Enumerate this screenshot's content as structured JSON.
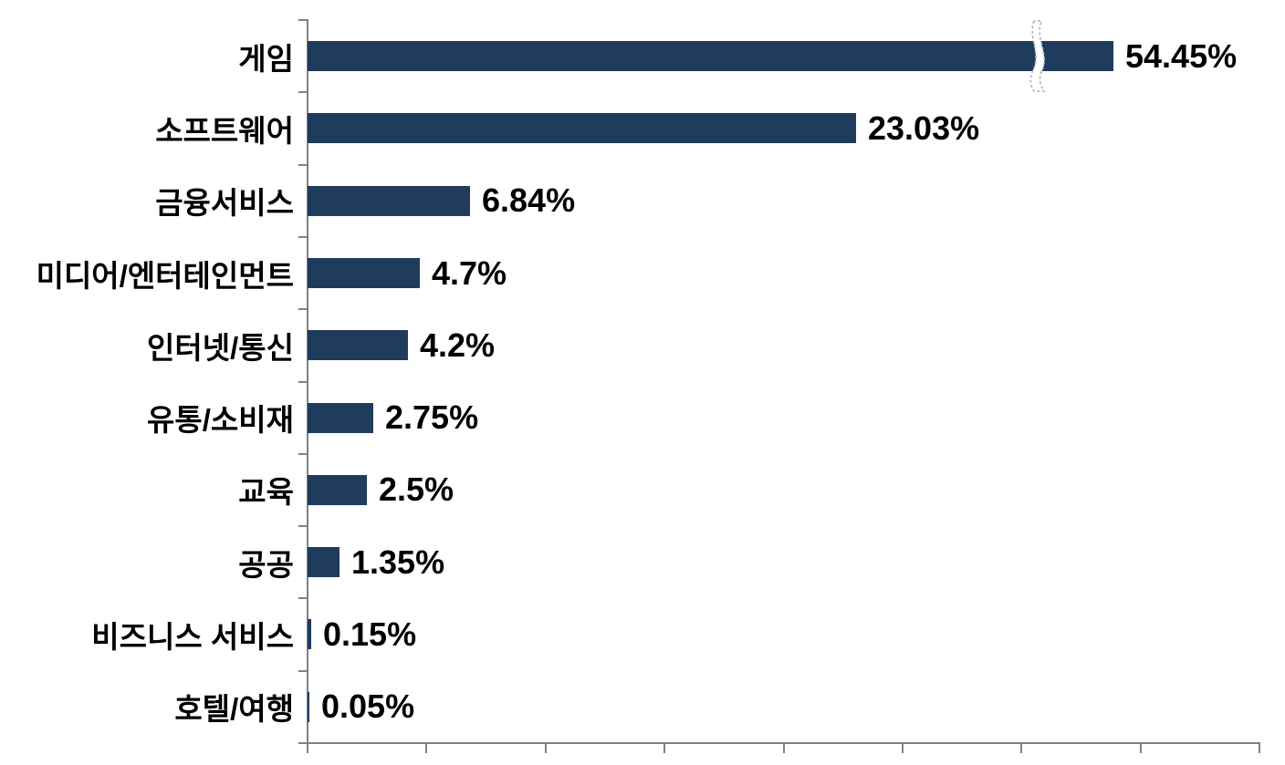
{
  "chart_data": {
    "type": "bar",
    "orientation": "horizontal",
    "title": "",
    "xlabel": "",
    "ylabel": "",
    "categories": [
      "게임",
      "소프트웨어",
      "금융서비스",
      "미디어/엔터테인먼트",
      "인터넷/통신",
      "유통/소비재",
      "교육",
      "공공",
      "비즈니스 서비스",
      "호텔/여행"
    ],
    "values": [
      54.45,
      23.03,
      6.84,
      4.7,
      4.2,
      2.75,
      2.5,
      1.35,
      0.15,
      0.05
    ],
    "value_labels": [
      "54.45%",
      "23.03%",
      "6.84%",
      "4.7%",
      "4.2%",
      "2.75%",
      "2.5%",
      "1.35%",
      "0.15%",
      "0.05%"
    ],
    "x_axis": {
      "min": 0,
      "max": 40,
      "tick_interval": 5,
      "tick_count": 9,
      "tick_labels_visible": false
    },
    "axis_break": {
      "present": true,
      "on_category": "게임",
      "true_value_percent": 54.45,
      "bar_drawn_at_percent": 33.86,
      "break_marker_at_percent": 30.7
    },
    "grid": false,
    "legend": false,
    "colors": {
      "bar": "#1F3B5E",
      "axis": "#808080",
      "label_text": "#000000",
      "background": "#FFFFFF",
      "break_marker_fill": "#FFFFFF",
      "break_marker_stroke": "#A9B4BE"
    }
  }
}
